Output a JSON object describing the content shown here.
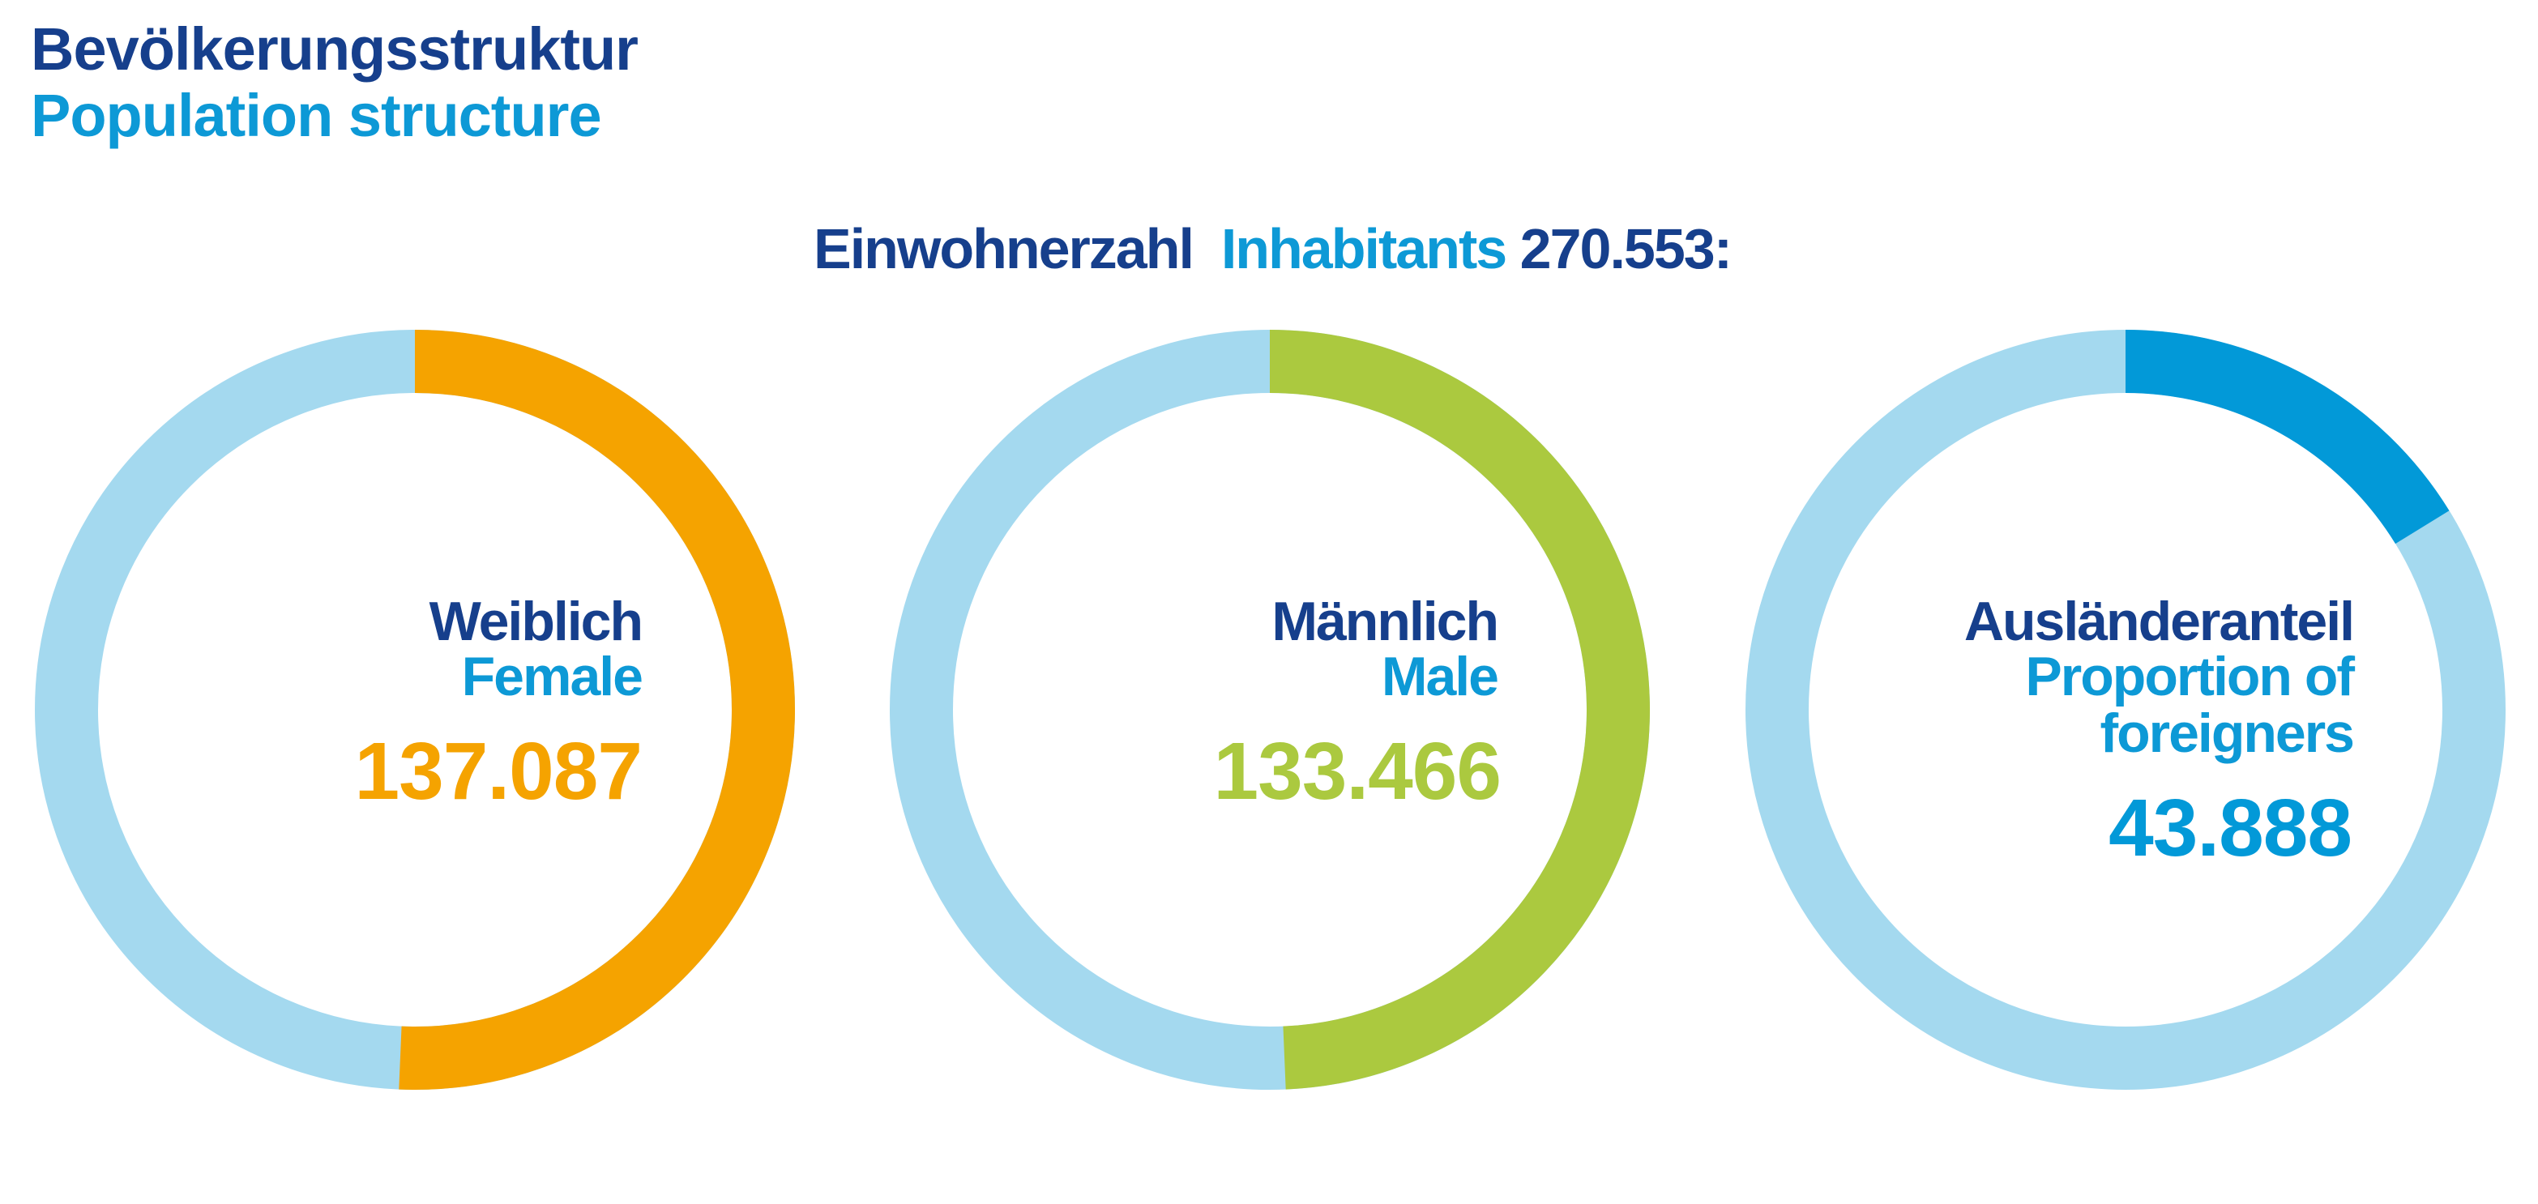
{
  "header": {
    "title_de": "Bevölkerungsstruktur",
    "title_en": "Population structure"
  },
  "inhabitants": {
    "label_de": "Einwohnerzahl",
    "label_en": "Inhabitants",
    "value": "270.553:"
  },
  "colors": {
    "dark_blue": "#163f8c",
    "light_blue": "#0d99d6",
    "ring_background": "#a4d9ef",
    "female": "#f5a300",
    "male": "#abc93f",
    "foreigners": "#0299d8"
  },
  "chart_data": [
    {
      "type": "pie",
      "title_de": "Weiblich",
      "title_en": "Female",
      "value_label": "137.087",
      "value": 137087,
      "total": 270553,
      "color": "#f5a300"
    },
    {
      "type": "pie",
      "title_de": "Männlich",
      "title_en": "Male",
      "value_label": "133.466",
      "value": 133466,
      "total": 270553,
      "color": "#abc93f"
    },
    {
      "type": "pie",
      "title_de": "Ausländeranteil",
      "title_en_line1": "Proportion of",
      "title_en_line2": "foreigners",
      "value_label": "43.888",
      "value": 43888,
      "total": 270553,
      "color": "#0299d8"
    }
  ]
}
